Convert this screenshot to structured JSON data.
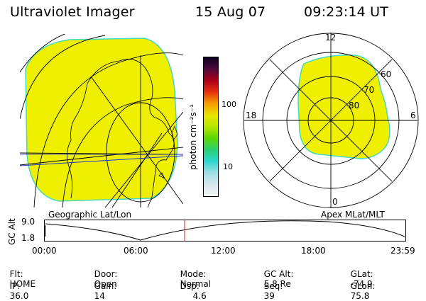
{
  "header": {
    "instrument": "Ultraviolet Imager",
    "date": "15 Aug 07",
    "time": "09:23:14 UT"
  },
  "colors": {
    "auroral_fill": "#eef000",
    "edge": "#45d9c0",
    "timeline_marker": "#cc2222"
  },
  "colorbar": {
    "unit_label": "photon cm⁻²s⁻¹",
    "tick_high": "100",
    "tick_low": "10",
    "stops": [
      "#0d0020",
      "#4a0a3a",
      "#b0001a",
      "#e83010",
      "#f59a00",
      "#e6e600",
      "#b6e600",
      "#5fd800",
      "#2ad07a",
      "#2dd6d0",
      "#9fdfe6",
      "#d8e8ee",
      "#f4f4f4"
    ]
  },
  "left_panel": {
    "caption": "Geographic Lat/Lon"
  },
  "right_panel": {
    "caption": "Apex MLat/MLT",
    "mlt_top": "12",
    "mlt_left": "18",
    "mlt_right": "6",
    "mlt_bottom": "0",
    "lat_60": "60",
    "lat_70": "70",
    "lat_80": "80"
  },
  "timeline": {
    "ylabel": "GC Alt",
    "y_top": "9.0",
    "y_bottom": "1.8",
    "ticks": [
      "00:00",
      "06:00",
      "12:00",
      "18:00",
      "23:59"
    ]
  },
  "status": {
    "flt_label": "Flt:",
    "flt_value": "HOME",
    "ip_label": "IP:",
    "ip_value": "36.0",
    "door_label": "Door:",
    "door_value": "Open",
    "gain_label": "Gain:",
    "gain_value": "14",
    "mode_label": "Mode:",
    "mode_value": "Normal",
    "dsp_label": "Dsp:",
    "dsp_value": "4.6",
    "gcalt_label": "GC Alt:",
    "gcalt_value": "5.8 Re",
    "seq_label": "Seq:",
    "seq_value": "39",
    "glat_label": "GLat:",
    "glat_value": "-74.9",
    "glon_label": "GLon:",
    "glon_value": "75.8"
  }
}
